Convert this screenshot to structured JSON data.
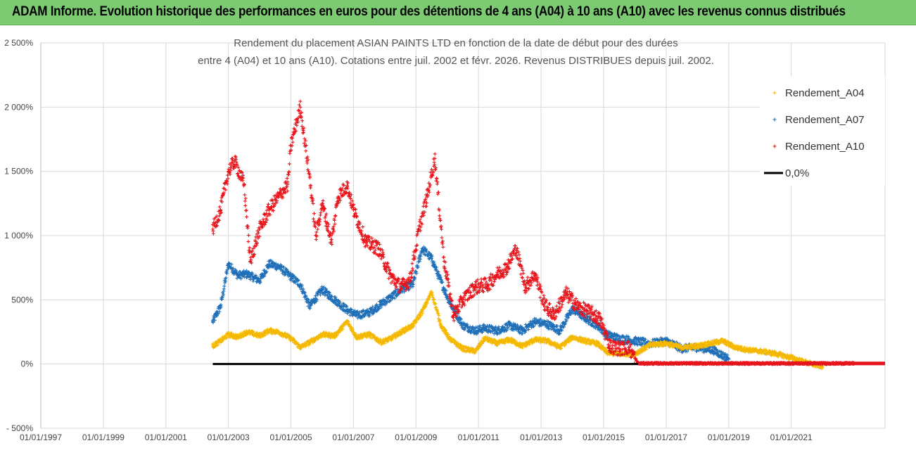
{
  "banner": {
    "title": "ADAM Informe. Evolution historique des performances en euros pour des détentions de 4 ans (A04) à 10 ans (A10) avec les revenus connus distribués"
  },
  "colors": {
    "banner": "#7ccb73",
    "A04": "#f5b800",
    "A07": "#1f6fb8",
    "A10": "#e8141b",
    "zero": "#000000",
    "grid": "#d9d9d9"
  },
  "chart_data": {
    "type": "scatter",
    "title_lines": [
      "Rendement du placement ASIAN PAINTS LTD en fonction de la date de début pour des durées",
      "entre 4 (A04) et 10 ans (A10). Cotations entre juil. 2002 et févr. 2026. Revenus DISTRIBUES depuis juil. 2002."
    ],
    "xlabel": "",
    "ylabel": "",
    "xlim": [
      1997.0,
      2024.0
    ],
    "ylim": [
      -500,
      2500
    ],
    "x_ticks": [
      1997,
      1999,
      2001,
      2003,
      2005,
      2007,
      2009,
      2011,
      2013,
      2015,
      2017,
      2019,
      2021
    ],
    "x_tick_labels": [
      "01/01/1997",
      "01/01/1999",
      "01/01/2001",
      "01/01/2003",
      "01/01/2005",
      "01/01/2007",
      "01/01/2009",
      "01/01/2011",
      "01/01/2013",
      "01/01/2015",
      "01/01/2017",
      "01/01/2019",
      "01/01/2021"
    ],
    "y_ticks": [
      -500,
      0,
      500,
      1000,
      1500,
      2000,
      2500
    ],
    "y_tick_labels": [
      "- 500%",
      "0%",
      "500%",
      "1 000%",
      "1 500%",
      "2 000%",
      "2 500%"
    ],
    "legend": {
      "position": "top-right",
      "entries": [
        "Rendement_A04",
        "Rendement_A07",
        "Rendement_A10",
        "0,0%"
      ]
    },
    "series": [
      {
        "name": "Rendement_A04",
        "marker": "+",
        "x": [
          2002.5,
          2002.75,
          2003.0,
          2003.3,
          2003.6,
          2004.0,
          2004.3,
          2004.6,
          2005.0,
          2005.3,
          2005.6,
          2006.0,
          2006.4,
          2006.8,
          2007.1,
          2007.5,
          2007.9,
          2008.2,
          2008.6,
          2008.9,
          2009.2,
          2009.5,
          2009.8,
          2010.1,
          2010.5,
          2010.9,
          2011.2,
          2011.6,
          2012.0,
          2012.4,
          2012.8,
          2013.2,
          2013.6,
          2014.0,
          2014.4,
          2014.8,
          2015.1,
          2015.5,
          2016.0,
          2016.5,
          2017.0,
          2017.5,
          2018.0,
          2018.4,
          2018.8,
          2019.2,
          2019.6,
          2020.0,
          2020.5,
          2021.0,
          2021.5,
          2022.0
        ],
        "y": [
          140,
          180,
          230,
          210,
          250,
          220,
          260,
          250,
          200,
          130,
          170,
          230,
          220,
          330,
          210,
          230,
          170,
          200,
          260,
          300,
          410,
          560,
          300,
          190,
          120,
          100,
          200,
          160,
          190,
          140,
          190,
          180,
          130,
          210,
          180,
          160,
          90,
          80,
          80,
          150,
          160,
          130,
          140,
          160,
          180,
          130,
          110,
          100,
          80,
          50,
          10,
          -20
        ]
      },
      {
        "name": "Rendement_A07",
        "marker": "+",
        "x": [
          2002.5,
          2002.75,
          2003.0,
          2003.3,
          2003.6,
          2004.0,
          2004.3,
          2004.6,
          2005.0,
          2005.3,
          2005.6,
          2006.0,
          2006.4,
          2006.8,
          2007.1,
          2007.5,
          2007.9,
          2008.2,
          2008.6,
          2008.9,
          2009.2,
          2009.5,
          2009.8,
          2010.1,
          2010.5,
          2010.9,
          2011.2,
          2011.6,
          2012.0,
          2012.4,
          2012.8,
          2013.2,
          2013.6,
          2014.0,
          2014.4,
          2014.8,
          2015.1,
          2015.5,
          2016.0,
          2016.5,
          2017.0,
          2017.5,
          2018.0,
          2018.5,
          2019.0
        ],
        "y": [
          330,
          450,
          780,
          690,
          700,
          650,
          780,
          760,
          680,
          620,
          450,
          580,
          500,
          420,
          380,
          400,
          470,
          520,
          590,
          620,
          900,
          820,
          640,
          470,
          300,
          260,
          280,
          260,
          300,
          260,
          330,
          310,
          260,
          430,
          360,
          300,
          230,
          200,
          180,
          160,
          180,
          120,
          130,
          110,
          40
        ]
      },
      {
        "name": "Rendement_A10",
        "marker": "+",
        "x": [
          2002.5,
          2002.75,
          2003.0,
          2003.2,
          2003.5,
          2003.7,
          2004.0,
          2004.3,
          2004.6,
          2004.9,
          2005.0,
          2005.3,
          2005.6,
          2005.8,
          2006.0,
          2006.3,
          2006.5,
          2006.8,
          2007.0,
          2007.4,
          2007.8,
          2008.2,
          2008.5,
          2008.8,
          2009.1,
          2009.35,
          2009.6,
          2009.9,
          2010.2,
          2010.5,
          2010.9,
          2011.3,
          2011.6,
          2011.9,
          2012.2,
          2012.5,
          2012.8,
          2013.1,
          2013.4,
          2013.8,
          2014.2,
          2014.6,
          2014.9,
          2015.2,
          2015.5,
          2015.8,
          2016.1,
          2016.5,
          2017.0,
          2018.0,
          2019.0,
          2020.0,
          2021.0,
          2022.0,
          2023.0
        ],
        "y": [
          1050,
          1200,
          1500,
          1580,
          1400,
          800,
          1050,
          1200,
          1300,
          1400,
          1700,
          2000,
          1450,
          1000,
          1250,
          950,
          1300,
          1390,
          1200,
          950,
          900,
          680,
          600,
          650,
          1050,
          1300,
          1600,
          800,
          380,
          500,
          600,
          620,
          700,
          750,
          900,
          600,
          700,
          470,
          380,
          550,
          440,
          400,
          340,
          140,
          120,
          130,
          5,
          5,
          5,
          5,
          5,
          5,
          5,
          5,
          5
        ]
      },
      {
        "name": "0,0%",
        "type": "line",
        "x": [
          2002.5,
          2024.0
        ],
        "y": [
          0,
          0
        ]
      }
    ]
  }
}
